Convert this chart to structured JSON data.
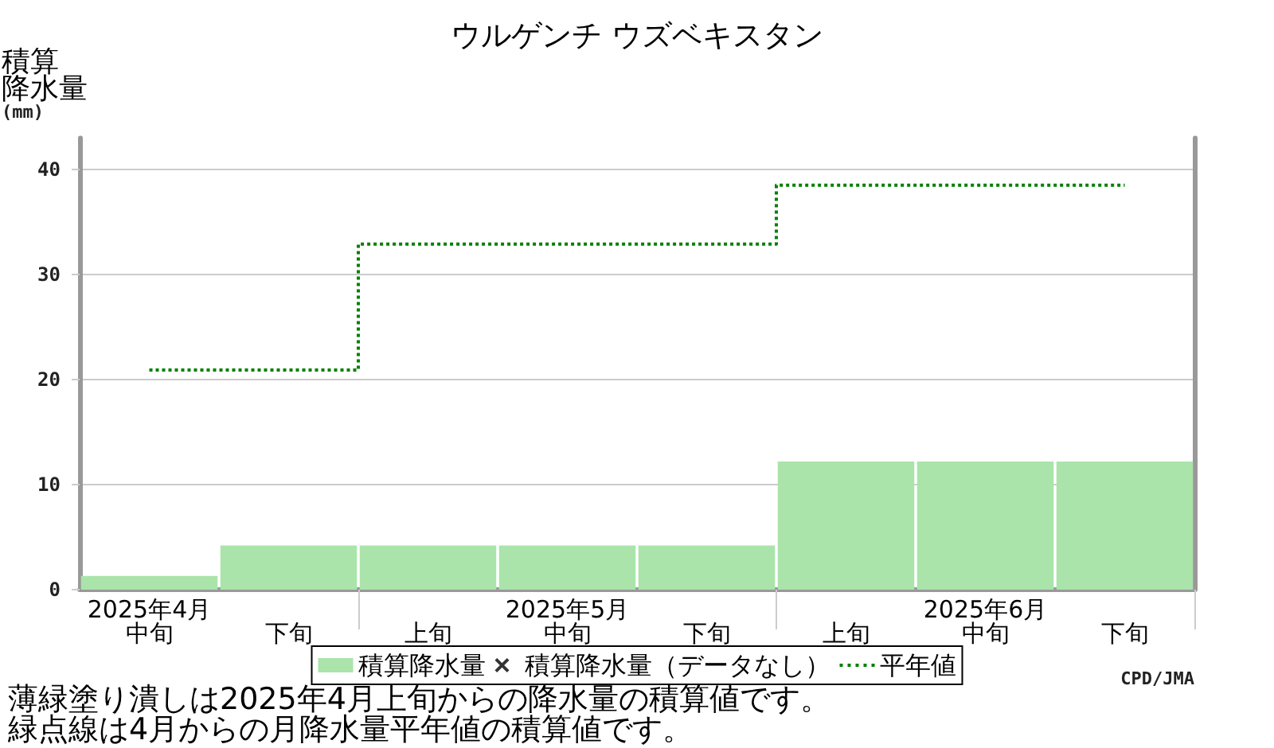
{
  "chart_data": {
    "type": "bar",
    "title": "ウルゲンチ ウズベキスタン",
    "ylabel": "積算降水量(mm)",
    "categories": [
      "2025年4月中旬",
      "下旬",
      "上旬",
      "2025年5月中旬",
      "下旬",
      "上旬",
      "2025年6月中旬",
      "下旬"
    ],
    "series": [
      {
        "name": "積算降水量",
        "color": "#aae4aa",
        "values": [
          1.3,
          4.2,
          4.2,
          4.2,
          4.2,
          12.2,
          12.2,
          12.2
        ]
      },
      {
        "name": "積算降水量（データなし）",
        "type": "scatter",
        "marker": "cross",
        "color": "#000000",
        "values": [
          null,
          null,
          null,
          null,
          null,
          null,
          null,
          null
        ]
      },
      {
        "name": "平年値",
        "type": "step",
        "color": "#008000",
        "line_style": "dotted",
        "values": [
          20.9,
          20.9,
          32.9,
          32.9,
          32.9,
          38.5,
          38.5,
          38.5
        ]
      }
    ],
    "ylim": [
      0,
      43
    ],
    "yticks": [
      0,
      10,
      20,
      30,
      40
    ],
    "grid": "y",
    "legend": "bottom",
    "annotations": [
      "CPD/JMA",
      "薄緑塗り潰しは2025年4月上旬からの降水量の積算値です。",
      "緑点線は4月からの月降水量平年値の積算値です。"
    ]
  }
}
